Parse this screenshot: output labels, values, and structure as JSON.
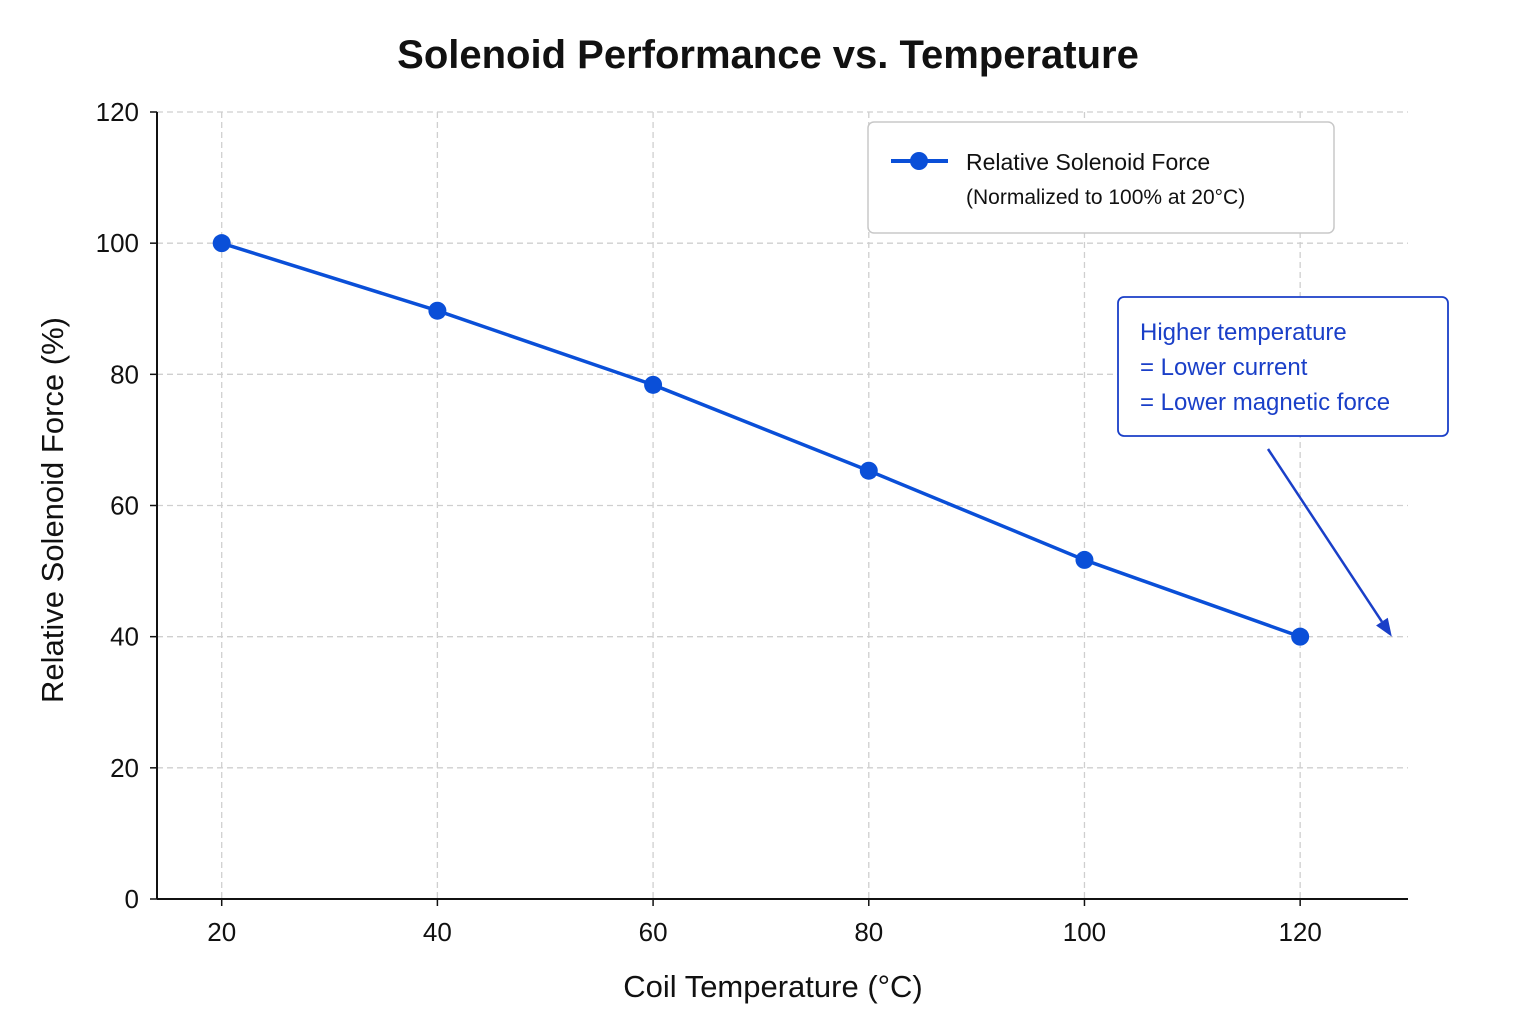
{
  "chart_data": {
    "type": "line",
    "title": "Solenoid Performance vs. Temperature",
    "xlabel": "Coil Temperature (°C)",
    "ylabel": "Relative Solenoid Force (%)",
    "xlim": [
      14,
      130
    ],
    "ylim": [
      0,
      120
    ],
    "xticks": [
      20,
      40,
      60,
      80,
      100,
      120
    ],
    "yticks": [
      0,
      20,
      40,
      60,
      80,
      100,
      120
    ],
    "grid": true,
    "legend_placement": "top-right",
    "series": [
      {
        "name": "Relative Solenoid Force",
        "x": [
          20,
          40,
          60,
          80,
          100,
          120
        ],
        "values": [
          100,
          89.7,
          78.4,
          65.3,
          51.7,
          40
        ],
        "color": "#0a4fd8",
        "marker": "circle"
      }
    ],
    "legend": {
      "line1": "Relative Solenoid Force",
      "line2": "(Normalized to 100% at 20°C)"
    },
    "annotation": {
      "lines": [
        "Higher temperature",
        "= Lower current",
        "= Lower magnetic force"
      ],
      "color": "#1a3fc8",
      "arrow_target": [
        128.5,
        40
      ]
    }
  }
}
